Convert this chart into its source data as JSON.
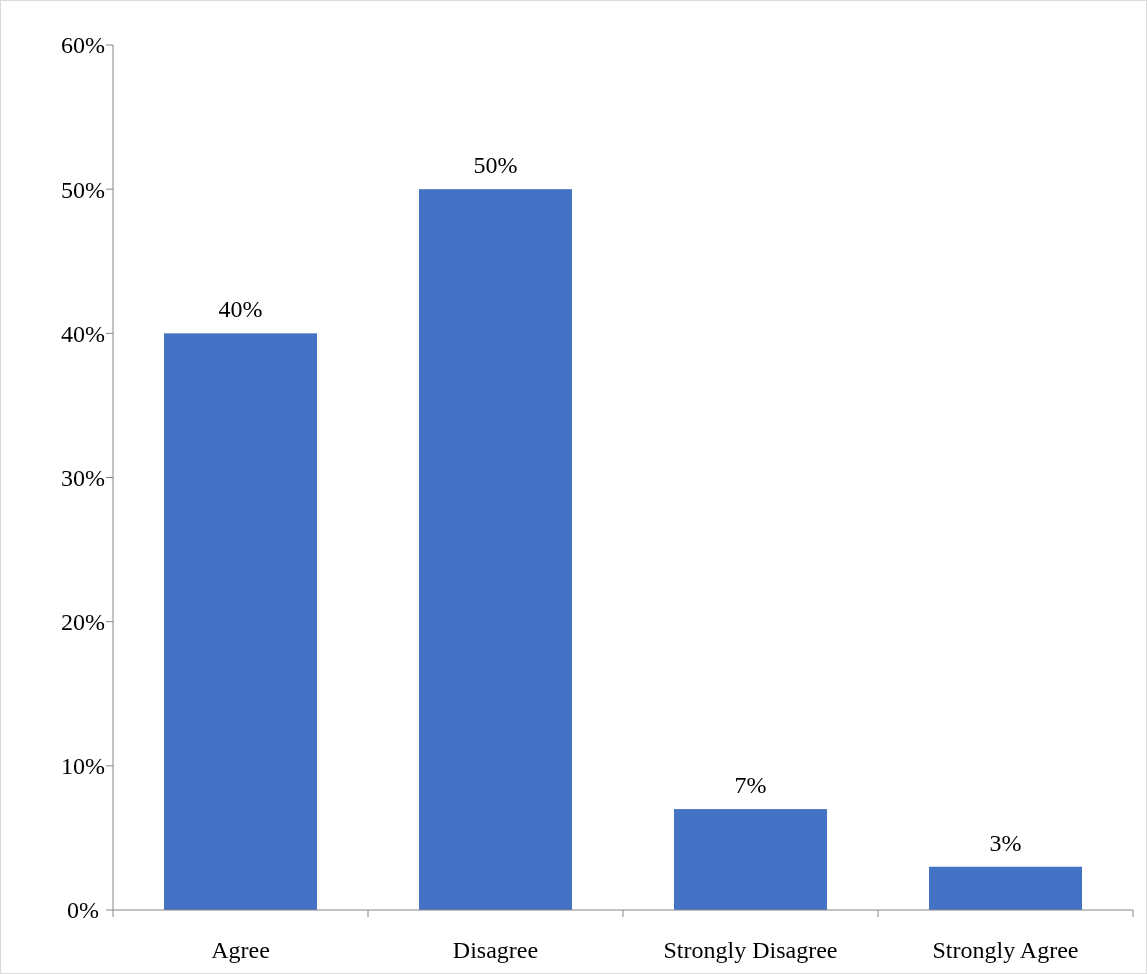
{
  "chart_data": {
    "type": "bar",
    "categories": [
      "Agree",
      "Disagree",
      "Strongly Disagree",
      "Strongly Agree"
    ],
    "values": [
      40,
      50,
      7,
      3
    ],
    "value_labels": [
      "40%",
      "50%",
      "7%",
      "3%"
    ],
    "color": "#4472c4",
    "ylim": [
      0,
      60
    ],
    "yticks": [
      {
        "value": 0,
        "label": "0%"
      },
      {
        "value": 10,
        "label": "10%"
      },
      {
        "value": 20,
        "label": "20%"
      },
      {
        "value": 30,
        "label": "30%"
      },
      {
        "value": 40,
        "label": "40%"
      },
      {
        "value": 50,
        "label": "50%"
      },
      {
        "value": 60,
        "label": "60%"
      }
    ],
    "grid": false
  }
}
